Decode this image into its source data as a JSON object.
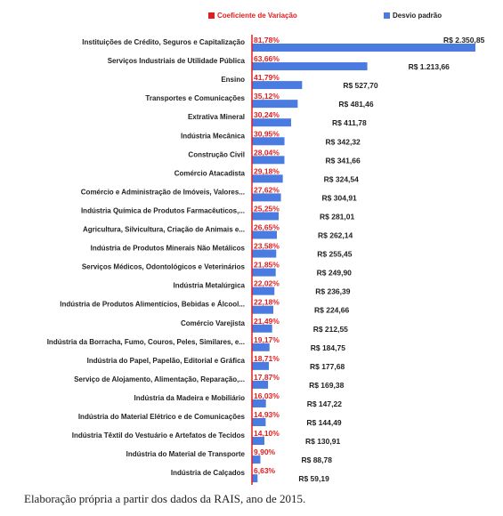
{
  "chart_data": {
    "type": "bar",
    "orientation": "horizontal",
    "colors": {
      "desvio": "#4a7be0",
      "coeficiente": "#e01e1e"
    },
    "legend": [
      "Coeficiente de Variação",
      "Desvio padrão"
    ],
    "legend_position": "top",
    "grid": false,
    "xlim": [
      0,
      2400
    ],
    "categories": [
      "Instituições de Crédito, Seguros e Capitalização",
      "Serviços Industriais de Utilidade Pública",
      "Ensino",
      "Transportes e Comunicações",
      "Extrativa Mineral",
      "Indústria Mecânica",
      "Construção Civil",
      "Comércio Atacadista",
      "Comércio e Administração de Imóveis, Valores...",
      "Indústria Química de Produtos Farmacêuticos,...",
      "Agricultura, Silvicultura, Criação de Animais e...",
      "Indústria de Produtos Minerais Não Metálicos",
      "Serviços Médicos, Odontológicos e Veterinários",
      "Indústria Metalúrgica",
      "Indústria de Produtos Alimentícios, Bebidas e Álcool...",
      "Comércio Varejista",
      "Indústria da Borracha, Fumo, Couros, Peles, Similares, e...",
      "Indústria do Papel, Papelão, Editorial e Gráfica",
      "Serviço de Alojamento, Alimentação, Reparação,...",
      "Indústria da Madeira e Mobiliário",
      "Indústria do Material Elétrico e de Comunicações",
      "Indústria Têxtil do Vestuário e Artefatos de Tecidos",
      "Indústria do Material de Transporte",
      "Indústria de Calçados"
    ],
    "series": [
      {
        "name": "Desvio padrão",
        "values": [
          2350.85,
          1213.66,
          527.7,
          481.46,
          411.78,
          342.32,
          341.66,
          324.54,
          304.91,
          281.01,
          262.14,
          255.45,
          249.9,
          236.39,
          224.66,
          212.55,
          184.75,
          177.68,
          169.38,
          147.22,
          144.49,
          130.91,
          88.78,
          59.19
        ],
        "labels": [
          "R$ 2.350,85",
          "R$ 1.213,66",
          "R$ 527,70",
          "R$ 481,46",
          "R$ 411,78",
          "R$ 342,32",
          "R$ 341,66",
          "R$ 324,54",
          "R$ 304,91",
          "R$ 281,01",
          "R$ 262,14",
          "R$ 255,45",
          "R$ 249,90",
          "R$ 236,39",
          "R$ 224,66",
          "R$ 212,55",
          "R$ 184,75",
          "R$ 177,68",
          "R$ 169,38",
          "R$ 147,22",
          "R$ 144,49",
          "R$ 130,91",
          "R$ 88,78",
          "R$ 59,19"
        ]
      },
      {
        "name": "Coeficiente de Variação",
        "values": [
          81.78,
          63.66,
          41.79,
          35.12,
          30.24,
          30.95,
          28.04,
          29.18,
          27.62,
          25.25,
          26.65,
          23.58,
          21.85,
          22.02,
          22.18,
          21.49,
          19.17,
          18.71,
          17.87,
          16.03,
          14.93,
          14.1,
          9.9,
          6.63
        ],
        "labels": [
          "81,78%",
          "63,66%",
          "41,79%",
          "35,12%",
          "30,24%",
          "30,95%",
          "28,04%",
          "29,18%",
          "27,62%",
          "25,25%",
          "26,65%",
          "23,58%",
          "21,85%",
          "22,02%",
          "22,18%",
          "21,49%",
          "19,17%",
          "18,71%",
          "17,87%",
          "16,03%",
          "14,93%",
          "14,10%",
          "9,90%",
          "6,63%"
        ]
      }
    ]
  },
  "caption": "Elaboração própria a partir dos dados da RAIS, ano de 2015."
}
